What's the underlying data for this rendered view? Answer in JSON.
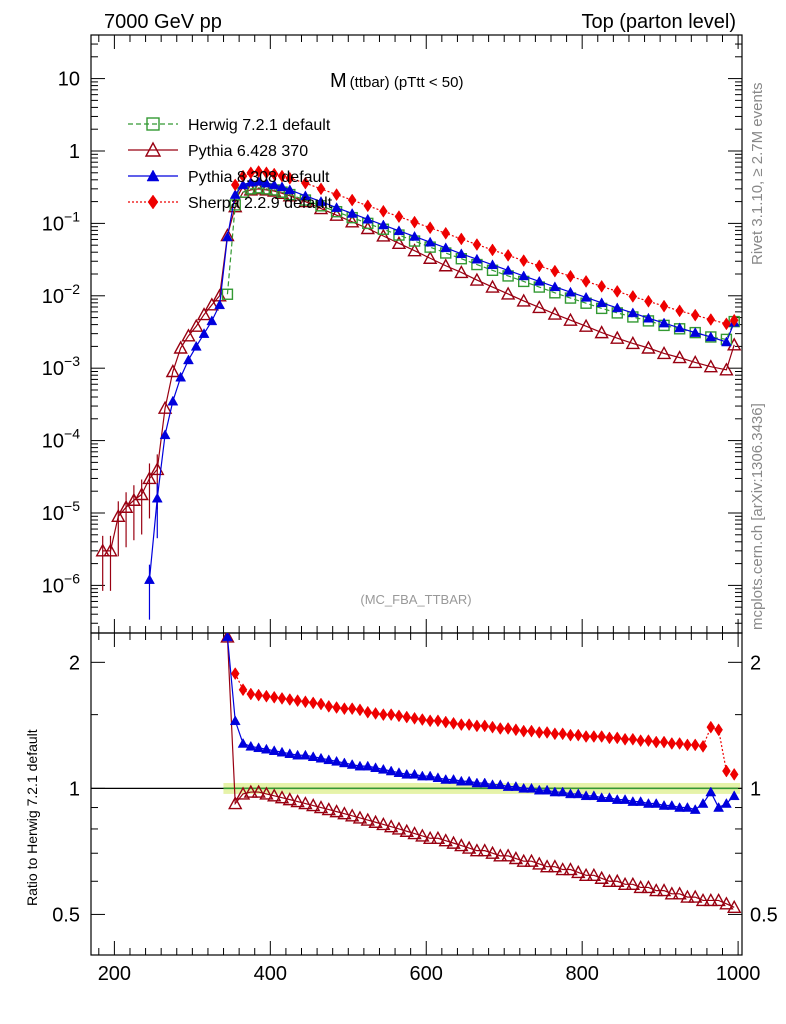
{
  "header": {
    "left": "7000 GeV pp",
    "right": "Top (parton level)"
  },
  "side_labels": {
    "rivet": "Rivet 3.1.10, ≥ 2.7M events",
    "mcplots": "mcplots.cern.ch [arXiv:1306.3436]"
  },
  "chart_data": [
    {
      "type": "line",
      "title": "M (ttbar) (pTtt < 50)",
      "title_main": "M",
      "title_sub": "(ttbar) (pTtt < 50)",
      "watermark": "(MC_FBA_TTBAR)",
      "xlim": [
        170,
        1005
      ],
      "ylim": [
        2.2e-07,
        40
      ],
      "yscale": "log",
      "ytick_labels": [
        "10",
        "1",
        "10−1",
        "10−2",
        "10−3",
        "10−4",
        "10−5",
        "10−6"
      ],
      "legend_placement": "top-left",
      "series": [
        {
          "name": "Herwig 7.2.1 default",
          "color": "#339933",
          "marker": "open-square",
          "style": "dashed",
          "x": [
            345,
            355,
            365,
            375,
            385,
            395,
            405,
            415,
            425,
            445,
            465,
            485,
            505,
            525,
            545,
            565,
            585,
            605,
            625,
            645,
            665,
            685,
            705,
            725,
            745,
            765,
            785,
            805,
            825,
            845,
            865,
            885,
            905,
            925,
            945,
            965,
            985,
            995
          ],
          "y": [
            0.0105,
            0.18,
            0.27,
            0.3,
            0.31,
            0.3,
            0.29,
            0.27,
            0.25,
            0.21,
            0.175,
            0.145,
            0.12,
            0.1,
            0.083,
            0.069,
            0.057,
            0.047,
            0.039,
            0.0325,
            0.027,
            0.0225,
            0.0188,
            0.0158,
            0.0132,
            0.011,
            0.0093,
            0.0079,
            0.0067,
            0.0058,
            0.0051,
            0.0045,
            0.0039,
            0.0035,
            0.0031,
            0.0027,
            0.0025,
            0.0044
          ]
        },
        {
          "name": "Pythia 6.428 370",
          "color": "#990011",
          "marker": "open-triangle",
          "style": "solid",
          "x": [
            185,
            195,
            205,
            215,
            225,
            235,
            245,
            255,
            265,
            275,
            285,
            295,
            305,
            315,
            325,
            335,
            345,
            355,
            365,
            375,
            385,
            395,
            405,
            415,
            425,
            445,
            465,
            485,
            505,
            525,
            545,
            565,
            585,
            605,
            625,
            645,
            665,
            685,
            705,
            725,
            745,
            765,
            785,
            805,
            825,
            845,
            865,
            885,
            905,
            925,
            945,
            965,
            985,
            995
          ],
          "y": [
            3e-06,
            3e-06,
            9e-06,
            1.2e-05,
            1.5e-05,
            1.8e-05,
            3e-05,
            4e-05,
            0.00028,
            0.0009,
            0.0019,
            0.0028,
            0.0038,
            0.0055,
            0.0075,
            0.01,
            0.068,
            0.17,
            0.27,
            0.29,
            0.3,
            0.29,
            0.28,
            0.26,
            0.24,
            0.2,
            0.16,
            0.13,
            0.105,
            0.085,
            0.067,
            0.053,
            0.042,
            0.033,
            0.026,
            0.021,
            0.0165,
            0.0132,
            0.0106,
            0.0085,
            0.0069,
            0.0056,
            0.0046,
            0.0038,
            0.0031,
            0.0026,
            0.0022,
            0.0019,
            0.0016,
            0.0014,
            0.0012,
            0.00105,
            0.00095,
            0.0021
          ]
        },
        {
          "name": "Pythia 8.308 default",
          "color": "#0000dd",
          "marker": "filled-triangle",
          "style": "solid",
          "x": [
            245,
            255,
            265,
            275,
            285,
            295,
            305,
            315,
            325,
            335,
            345,
            355,
            365,
            375,
            385,
            395,
            405,
            415,
            425,
            445,
            465,
            485,
            505,
            525,
            545,
            565,
            585,
            605,
            625,
            645,
            665,
            685,
            705,
            725,
            745,
            765,
            785,
            805,
            825,
            845,
            865,
            885,
            905,
            925,
            945,
            965,
            985,
            995
          ],
          "y": [
            1.2e-06,
            1.6e-05,
            0.00012,
            0.00035,
            0.00075,
            0.0013,
            0.002,
            0.003,
            0.0045,
            0.0075,
            0.065,
            0.25,
            0.34,
            0.37,
            0.38,
            0.36,
            0.34,
            0.32,
            0.29,
            0.24,
            0.2,
            0.165,
            0.137,
            0.114,
            0.095,
            0.079,
            0.066,
            0.055,
            0.046,
            0.038,
            0.032,
            0.0268,
            0.0224,
            0.0188,
            0.0158,
            0.0133,
            0.0112,
            0.0095,
            0.008,
            0.0068,
            0.0058,
            0.0049,
            0.0042,
            0.0036,
            0.0031,
            0.0027,
            0.0023,
            0.0043
          ]
        },
        {
          "name": "Sherpa 2.2.9 default",
          "color": "#ee0000",
          "marker": "filled-diamond",
          "style": "dotted",
          "x": [
            355,
            365,
            375,
            385,
            395,
            405,
            415,
            425,
            445,
            465,
            485,
            505,
            525,
            545,
            565,
            585,
            605,
            625,
            645,
            665,
            685,
            705,
            725,
            745,
            765,
            785,
            805,
            825,
            845,
            865,
            885,
            905,
            925,
            945,
            965,
            985,
            995
          ],
          "y": [
            0.34,
            0.45,
            0.5,
            0.52,
            0.5,
            0.48,
            0.45,
            0.42,
            0.36,
            0.3,
            0.25,
            0.21,
            0.175,
            0.147,
            0.124,
            0.104,
            0.087,
            0.073,
            0.061,
            0.051,
            0.043,
            0.0362,
            0.0306,
            0.0259,
            0.0219,
            0.0186,
            0.0158,
            0.0135,
            0.0115,
            0.0098,
            0.0084,
            0.0072,
            0.0062,
            0.0054,
            0.0047,
            0.0041,
            0.0046
          ]
        }
      ]
    },
    {
      "type": "line",
      "ylabel": "Ratio to Herwig 7.2.1 default",
      "xlim": [
        170,
        1005
      ],
      "ylim": [
        0.4,
        2.35
      ],
      "yscale": "log",
      "ytick_labels": [
        "2",
        "1",
        "0.5"
      ],
      "xtick_labels": [
        "200",
        "400",
        "600",
        "800",
        "1000"
      ],
      "reference": 1,
      "series": [
        {
          "name": "Pythia 6.428 370",
          "color": "#990011",
          "marker": "open-triangle",
          "x": [
            345,
            355,
            365,
            375,
            385,
            395,
            405,
            415,
            425,
            435,
            445,
            455,
            465,
            475,
            485,
            495,
            505,
            515,
            525,
            535,
            545,
            555,
            565,
            575,
            585,
            595,
            605,
            615,
            625,
            635,
            645,
            655,
            665,
            675,
            685,
            695,
            705,
            715,
            725,
            735,
            745,
            755,
            765,
            775,
            785,
            795,
            805,
            815,
            825,
            835,
            845,
            855,
            865,
            875,
            885,
            895,
            905,
            915,
            925,
            935,
            945,
            955,
            965,
            975,
            985,
            995
          ],
          "y": [
            2.3,
            0.92,
            0.97,
            0.98,
            0.98,
            0.97,
            0.96,
            0.95,
            0.94,
            0.93,
            0.92,
            0.91,
            0.9,
            0.89,
            0.88,
            0.87,
            0.86,
            0.85,
            0.84,
            0.83,
            0.82,
            0.81,
            0.8,
            0.79,
            0.78,
            0.77,
            0.76,
            0.76,
            0.75,
            0.74,
            0.73,
            0.72,
            0.71,
            0.71,
            0.7,
            0.69,
            0.69,
            0.68,
            0.67,
            0.67,
            0.66,
            0.65,
            0.65,
            0.64,
            0.64,
            0.63,
            0.62,
            0.62,
            0.61,
            0.6,
            0.6,
            0.59,
            0.59,
            0.58,
            0.58,
            0.57,
            0.57,
            0.56,
            0.56,
            0.55,
            0.55,
            0.54,
            0.54,
            0.54,
            0.53,
            0.52
          ]
        },
        {
          "name": "Pythia 8.308 default",
          "color": "#0000dd",
          "marker": "filled-triangle",
          "x": [
            345,
            355,
            365,
            375,
            385,
            395,
            405,
            415,
            425,
            435,
            445,
            455,
            465,
            475,
            485,
            495,
            505,
            515,
            525,
            535,
            545,
            555,
            565,
            575,
            585,
            595,
            605,
            615,
            625,
            635,
            645,
            655,
            665,
            675,
            685,
            695,
            705,
            715,
            725,
            735,
            745,
            755,
            765,
            775,
            785,
            795,
            805,
            815,
            825,
            835,
            845,
            855,
            865,
            875,
            885,
            895,
            905,
            915,
            925,
            935,
            945,
            955,
            965,
            975,
            985,
            995
          ],
          "y": [
            2.3,
            1.45,
            1.28,
            1.26,
            1.25,
            1.24,
            1.23,
            1.22,
            1.21,
            1.2,
            1.2,
            1.19,
            1.18,
            1.17,
            1.16,
            1.15,
            1.14,
            1.13,
            1.13,
            1.12,
            1.11,
            1.1,
            1.09,
            1.08,
            1.08,
            1.07,
            1.07,
            1.06,
            1.05,
            1.05,
            1.04,
            1.04,
            1.03,
            1.03,
            1.02,
            1.02,
            1.01,
            1.01,
            1.0,
            1.0,
            0.99,
            0.99,
            0.98,
            0.98,
            0.97,
            0.97,
            0.96,
            0.96,
            0.95,
            0.95,
            0.94,
            0.94,
            0.93,
            0.93,
            0.92,
            0.92,
            0.91,
            0.91,
            0.9,
            0.9,
            0.89,
            0.92,
            0.98,
            0.9,
            0.92,
            0.96
          ]
        },
        {
          "name": "Sherpa 2.2.9 default",
          "color": "#ee0000",
          "marker": "filled-diamond",
          "x": [
            355,
            365,
            375,
            385,
            395,
            405,
            415,
            425,
            435,
            445,
            455,
            465,
            475,
            485,
            495,
            505,
            515,
            525,
            535,
            545,
            555,
            565,
            575,
            585,
            595,
            605,
            615,
            625,
            635,
            645,
            655,
            665,
            675,
            685,
            695,
            705,
            715,
            725,
            735,
            745,
            755,
            765,
            775,
            785,
            795,
            805,
            815,
            825,
            835,
            845,
            855,
            865,
            875,
            885,
            895,
            905,
            915,
            925,
            935,
            945,
            955,
            965,
            975,
            985,
            995
          ],
          "y": [
            1.88,
            1.72,
            1.68,
            1.67,
            1.66,
            1.65,
            1.64,
            1.63,
            1.62,
            1.61,
            1.6,
            1.59,
            1.57,
            1.56,
            1.55,
            1.55,
            1.54,
            1.52,
            1.51,
            1.5,
            1.5,
            1.49,
            1.48,
            1.47,
            1.46,
            1.45,
            1.45,
            1.44,
            1.43,
            1.42,
            1.42,
            1.41,
            1.41,
            1.4,
            1.39,
            1.39,
            1.38,
            1.37,
            1.37,
            1.36,
            1.36,
            1.35,
            1.35,
            1.34,
            1.34,
            1.33,
            1.33,
            1.33,
            1.32,
            1.32,
            1.31,
            1.31,
            1.3,
            1.3,
            1.29,
            1.29,
            1.28,
            1.28,
            1.27,
            1.27,
            1.26,
            1.4,
            1.38,
            1.1,
            1.08
          ]
        }
      ]
    }
  ]
}
